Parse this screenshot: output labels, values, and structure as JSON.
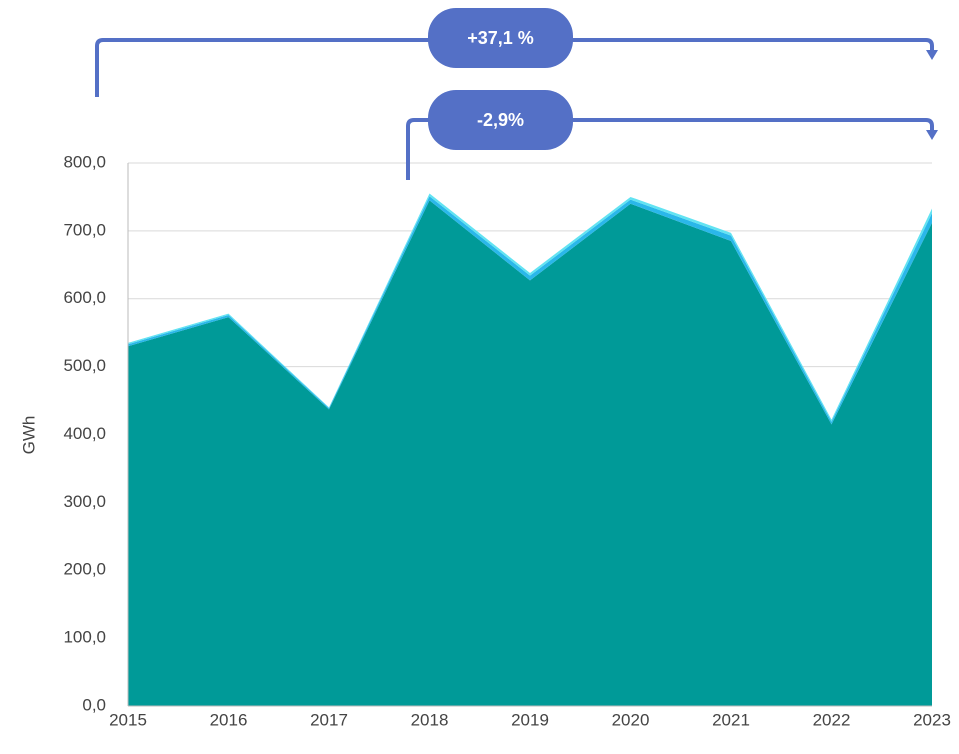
{
  "chart_data": {
    "type": "area",
    "stacked": true,
    "y_label": "GWh",
    "categories": [
      "2015",
      "2016",
      "2017",
      "2018",
      "2019",
      "2020",
      "2021",
      "2022",
      "2023"
    ],
    "series": [
      {
        "color": "#009a98",
        "values": [
          530,
          573,
          437,
          745,
          627,
          740,
          685,
          415,
          712
        ]
      },
      {
        "color": "#2ab7ea",
        "values": [
          3,
          3,
          2,
          6,
          7,
          6,
          8,
          4,
          14
        ]
      },
      {
        "color": "#62e3f2",
        "values": [
          2,
          2,
          1,
          4,
          4,
          4,
          4,
          3,
          7
        ]
      }
    ],
    "ylim": [
      0,
      800
    ],
    "yticks": [
      {
        "value": 0,
        "label": "0,0"
      },
      {
        "value": 100,
        "label": "100,0"
      },
      {
        "value": 200,
        "label": "200,0"
      },
      {
        "value": 300,
        "label": "300,0"
      },
      {
        "value": 400,
        "label": "400,0"
      },
      {
        "value": 500,
        "label": "500,0"
      },
      {
        "value": 600,
        "label": "600,0"
      },
      {
        "value": 700,
        "label": "700,0"
      },
      {
        "value": 800,
        "label": "800,0"
      }
    ],
    "grid": true,
    "annotations": [
      {
        "label": "+37,1 %"
      },
      {
        "label": "-2,9%"
      }
    ]
  }
}
